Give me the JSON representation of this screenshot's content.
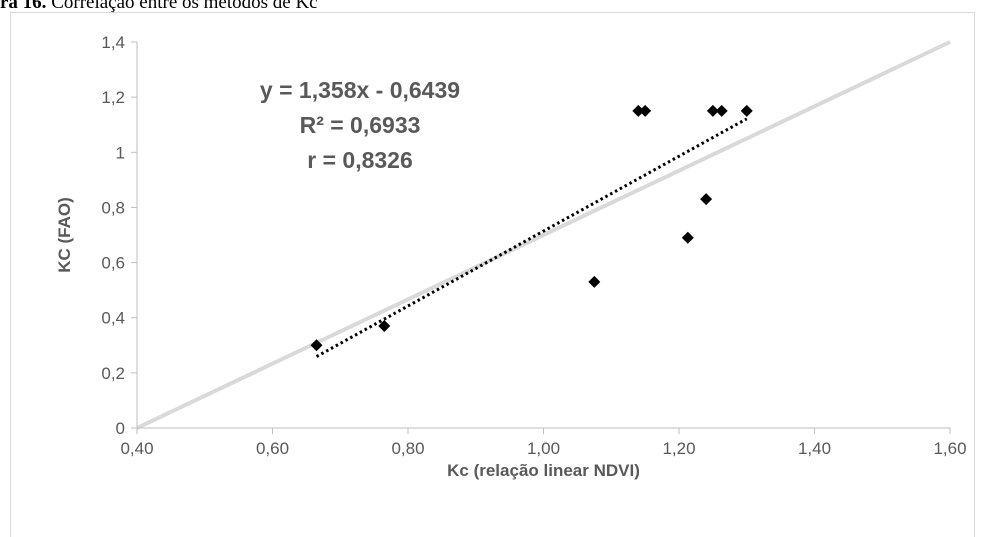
{
  "caption": {
    "prefix": "ra 16.",
    "text": " Correlação entre os métodos de Kc"
  },
  "chart_data": {
    "type": "scatter",
    "xlabel": "Kc (relação linear NDVI)",
    "ylabel": "KC (FAO)",
    "xlim": [
      0.4,
      1.6
    ],
    "ylim": [
      0,
      1.4
    ],
    "x_ticks": [
      "0,40",
      "0,60",
      "0,80",
      "1,00",
      "1,20",
      "1,40",
      "1,60"
    ],
    "x_tick_values": [
      0.4,
      0.6,
      0.8,
      1.0,
      1.2,
      1.4,
      1.6
    ],
    "y_ticks": [
      "0",
      "0,2",
      "0,4",
      "0,6",
      "0,8",
      "1",
      "1,2",
      "1,4"
    ],
    "y_tick_values": [
      0,
      0.2,
      0.4,
      0.6,
      0.8,
      1.0,
      1.2,
      1.4
    ],
    "grid": false,
    "points": [
      {
        "x": 0.665,
        "y": 0.3
      },
      {
        "x": 0.765,
        "y": 0.37
      },
      {
        "x": 1.075,
        "y": 0.53
      },
      {
        "x": 1.14,
        "y": 1.15
      },
      {
        "x": 1.15,
        "y": 1.15
      },
      {
        "x": 1.213,
        "y": 0.69
      },
      {
        "x": 1.24,
        "y": 0.83
      },
      {
        "x": 1.25,
        "y": 1.15
      },
      {
        "x": 1.263,
        "y": 1.15
      },
      {
        "x": 1.3,
        "y": 1.15
      }
    ],
    "identity_line": {
      "x": [
        0.4,
        1.6
      ],
      "y": [
        0,
        1.4
      ],
      "color": "#d9d9d9"
    },
    "trendline": {
      "slope": 1.358,
      "intercept": -0.6439,
      "x_range": [
        0.665,
        1.3
      ],
      "color": "#000000",
      "style": "dotted"
    },
    "annotations": {
      "equation": "y = 1,358x - 0,6439",
      "r2": "R² = 0,6933",
      "r": "r = 0,8326"
    },
    "colors": {
      "axis": "#bfbfbf",
      "text": "#595959",
      "marker": "#000000"
    }
  }
}
